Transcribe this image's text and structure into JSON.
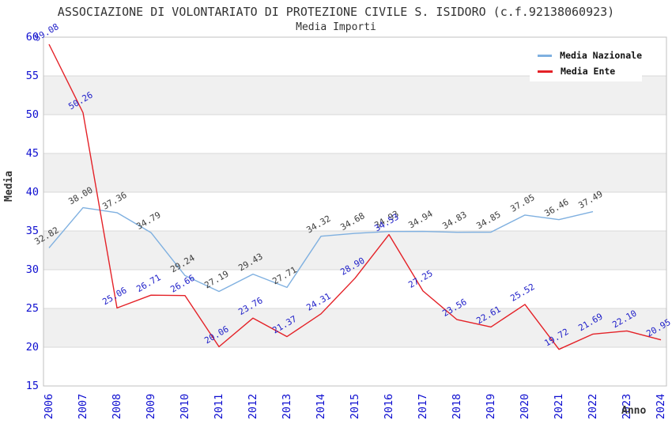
{
  "chart": {
    "title": "ASSOCIAZIONE DI VOLONTARIATO DI PROTEZIONE CIVILE S. ISIDORO (c.f.92138060923)",
    "subtitle": "Media Importi",
    "ylabel": "Media",
    "xlabel": "Anno",
    "legend": [
      {
        "label": "Media Nazionale",
        "color": "#7fb0e0"
      },
      {
        "label": "Media Ente",
        "color": "#e42127"
      }
    ]
  },
  "chart_data": {
    "type": "line",
    "title": "ASSOCIAZIONE DI VOLONTARIATO DI PROTEZIONE CIVILE S. ISIDORO (c.f.92138060923)",
    "subtitle": "Media Importi",
    "xlabel": "Anno",
    "ylabel": "Media",
    "x": [
      2006,
      2007,
      2008,
      2009,
      2010,
      2011,
      2012,
      2013,
      2014,
      2015,
      2016,
      2017,
      2018,
      2019,
      2020,
      2021,
      2022,
      2023,
      2024
    ],
    "series": [
      {
        "name": "Media Nazionale",
        "color": "#7fb0e0",
        "label_color": "#3d3d3d",
        "values": [
          32.82,
          38.0,
          37.36,
          34.79,
          29.24,
          27.19,
          29.43,
          27.71,
          34.32,
          34.68,
          34.93,
          34.94,
          34.83,
          34.85,
          37.05,
          36.46,
          37.49,
          null,
          null
        ]
      },
      {
        "name": "Media Ente",
        "color": "#e42127",
        "label_color": "#2121c9",
        "values": [
          59.08,
          50.26,
          25.06,
          26.71,
          26.66,
          20.06,
          23.76,
          21.37,
          24.31,
          28.9,
          34.53,
          27.25,
          23.56,
          22.61,
          25.52,
          19.72,
          21.69,
          22.1,
          20.95
        ]
      }
    ],
    "ylim": [
      15,
      60
    ],
    "yticks": [
      15,
      20,
      25,
      30,
      35,
      40,
      45,
      50,
      55,
      60
    ],
    "grid": true,
    "legend_position": "top-right",
    "band_fill": "#f0f0f0",
    "grid_color": "#d8d8d8",
    "border_color": "#c0c0c0",
    "tick_color": "#0e0ed0"
  }
}
